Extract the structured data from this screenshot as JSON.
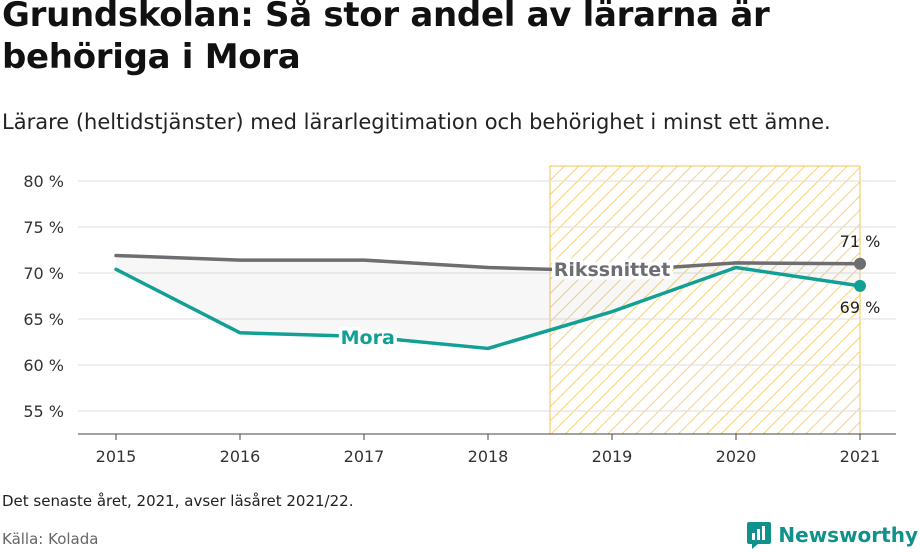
{
  "title": "Grundskolan: Så stor andel av lärarna är behöriga i Mora",
  "subtitle": "Lärare (heltidstjänster) med lärarlegitimation och behörighet i minst ett ämne.",
  "note": "Det senaste året, 2021, avser läsåret 2021/22.",
  "source": "Källa: Kolada",
  "brand": "Newsworthy",
  "chart_data": {
    "type": "line",
    "x": [
      2015,
      2016,
      2017,
      2018,
      2019,
      2020,
      2021
    ],
    "tick_labels_y": [
      "55 %",
      "60 %",
      "65 %",
      "70 %",
      "75 %",
      "80 %"
    ],
    "y_ticks": [
      55,
      60,
      65,
      70,
      75,
      80
    ],
    "ylim": [
      52.5,
      82.5
    ],
    "grid": true,
    "highlight_range": [
      2018.5,
      2021
    ],
    "series": [
      {
        "name": "Rikssnittet",
        "color": "#6e6e72",
        "values": [
          71.9,
          71.4,
          71.4,
          70.6,
          70.2,
          71.1,
          71.0
        ],
        "end_label": "71 %"
      },
      {
        "name": "Mora",
        "color": "#12a096",
        "values": [
          70.4,
          63.5,
          63.1,
          61.8,
          65.8,
          70.6,
          68.6
        ],
        "end_label": "69 %"
      }
    ]
  }
}
